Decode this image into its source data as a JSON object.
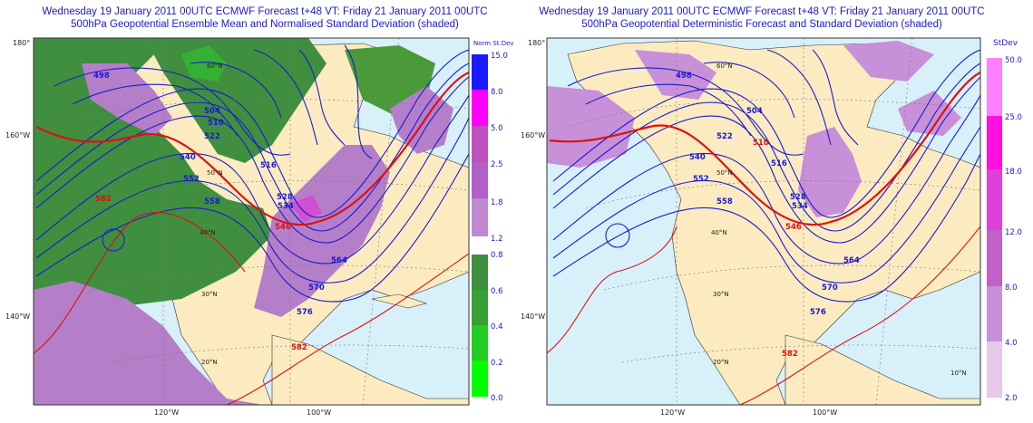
{
  "left_panel": {
    "title_line1": "Wednesday 19 January 2011 00UTC ECMWF Forecast t+48  VT: Friday 21 January 2011 00UTC",
    "title_line2": "500hPa Geopotential Ensemble Mean and Normalised Standard Deviation (shaded)",
    "legend_title": "Norm St.Dev",
    "legend_ticks": [
      "15.0",
      "8.0",
      "5.0",
      "2.5",
      "1.8",
      "1.2",
      "0.8",
      "0.6",
      "0.4",
      "0.2",
      "0.0"
    ],
    "legend_colors": [
      "#1a1aff",
      "#ff00ff",
      "#c04fc0",
      "#b060c8",
      "#c088d0",
      "#6d8a3e",
      "#3f8f3f",
      "#35b035",
      "#22cc22",
      "#00ff00"
    ],
    "lat_labels": [
      "180°",
      "160°W",
      "140°W"
    ],
    "lon_labels": [
      "120°W",
      "100°W"
    ],
    "inner_lat_labels": [
      "60°N",
      "50°N",
      "40°N",
      "30°N",
      "20°N"
    ],
    "contour_labels": [
      "498",
      "504",
      "510",
      "516",
      "522",
      "528",
      "534",
      "540",
      "546",
      "552",
      "558",
      "564",
      "570",
      "576",
      "582"
    ]
  },
  "right_panel": {
    "title_line1": "Wednesday 19 January 2011 00UTC ECMWF Forecast t+48  VT: Friday 21 January 2011 00UTC",
    "title_line2": "500hPa Geopotential Deterministic Forecast and Standard Deviation (shaded)",
    "legend_title": "StDev",
    "legend_ticks": [
      "50.0",
      "25.0",
      "18.0",
      "12.0",
      "8.0",
      "4.0",
      "2.0"
    ],
    "legend_colors": [
      "#ff80ff",
      "#ff10e0",
      "#e040d8",
      "#c060c8",
      "#c890d8",
      "#e8c8e8"
    ],
    "lat_labels": [
      "180°",
      "160°W",
      "140°W"
    ],
    "lon_labels": [
      "120°W",
      "100°W"
    ],
    "inner_lat_labels": [
      "60°N",
      "50°N",
      "40°N",
      "30°N",
      "20°N",
      "10°N"
    ],
    "contour_labels": [
      "498",
      "504",
      "510",
      "516",
      "522",
      "528",
      "534",
      "540",
      "546",
      "552",
      "558",
      "564",
      "570",
      "576",
      "582"
    ]
  },
  "colors": {
    "ocean": "#d8f0fa",
    "land": "#fcebc0",
    "contour": "#1a1ad0",
    "contour_546": "#e01010",
    "contour_582": "#e01010"
  }
}
